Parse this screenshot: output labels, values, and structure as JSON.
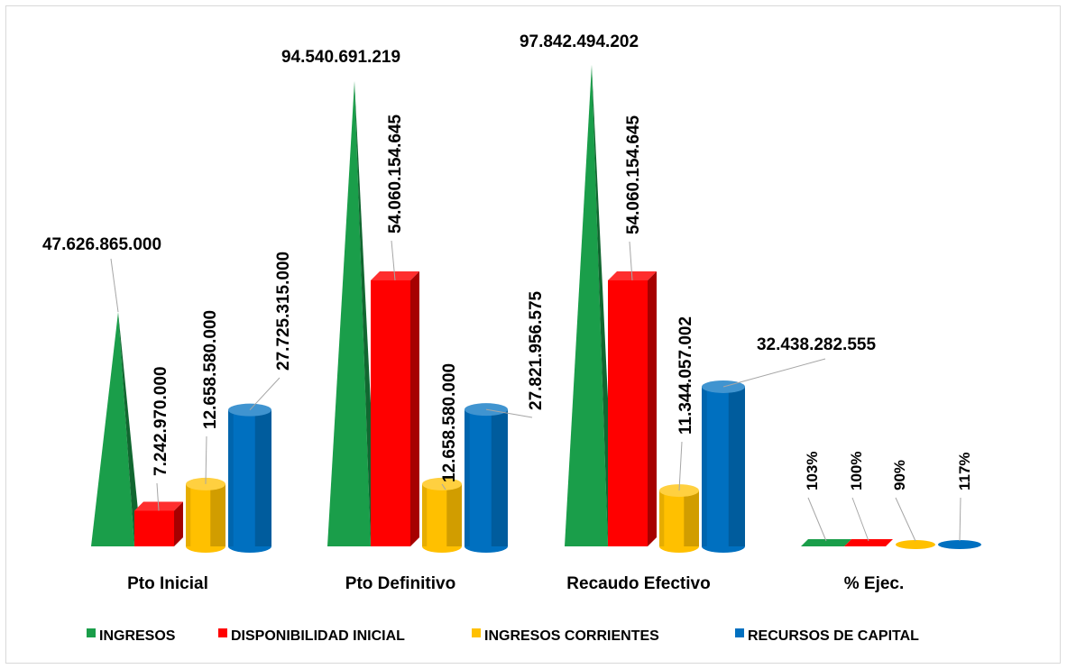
{
  "chart_data": {
    "type": "bar",
    "categories": [
      "Pto Inicial",
      "Pto Definitivo",
      "Recaudo Efectivo",
      "% Ejec."
    ],
    "series": [
      {
        "name": "INGRESOS",
        "color": "#1a9e4a",
        "shape": "pyramid",
        "values": [
          47626865000,
          94540691219,
          97842494202,
          103
        ],
        "labels": [
          "47.626.865.000",
          "94.540.691.219",
          "97.842.494.202",
          "103%"
        ]
      },
      {
        "name": "DISPONIBILIDAD INICIAL",
        "color": "#ff0000",
        "shape": "box",
        "values": [
          7242970000,
          54060154645,
          54060154645,
          100
        ],
        "labels": [
          "7.242.970.000",
          "54.060.154.645",
          "54.060.154.645",
          "100%"
        ]
      },
      {
        "name": "INGRESOS CORRIENTES",
        "color": "#ffc000",
        "shape": "cylinder",
        "values": [
          12658580000,
          12658580000,
          11344057002,
          90
        ],
        "labels": [
          "12.658.580.000",
          "12.658.580.000",
          "11.344.057.002",
          "90%"
        ]
      },
      {
        "name": "RECURSOS DE CAPITAL",
        "color": "#0070c0",
        "shape": "cylinder",
        "values": [
          27725315000,
          27821956575,
          32438282555,
          117
        ],
        "labels": [
          "27.725.315.000",
          "27.821.956.575",
          "32.438.282.555",
          "117%"
        ]
      }
    ],
    "legend_position": "bottom",
    "grid": false
  }
}
